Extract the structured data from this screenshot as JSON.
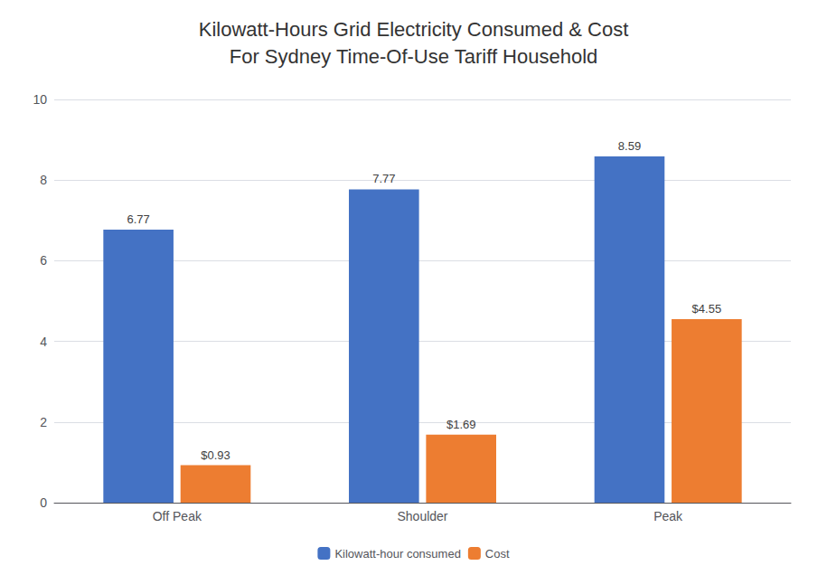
{
  "chart_data": {
    "type": "bar",
    "title": "Kilowatt-Hours Grid Electricity Consumed & Cost\nFor Sydney Time-Of-Use Tariff Household",
    "categories": [
      "Off Peak",
      "Shoulder",
      "Peak"
    ],
    "series": [
      {
        "name": "Kilowatt-hour consumed",
        "color": "#4472C4",
        "values": [
          6.77,
          7.77,
          8.59
        ]
      },
      {
        "name": "Cost",
        "color": "#ED7D31",
        "values": [
          0.93,
          1.69,
          4.55
        ],
        "value_labels": [
          "$0.93",
          "$1.69",
          "$4.55"
        ]
      }
    ],
    "ylim": [
      0,
      10
    ],
    "yticks": [
      0,
      2,
      4,
      6,
      8,
      10
    ],
    "grid": true,
    "legend": "bottom",
    "data_labels": true
  }
}
